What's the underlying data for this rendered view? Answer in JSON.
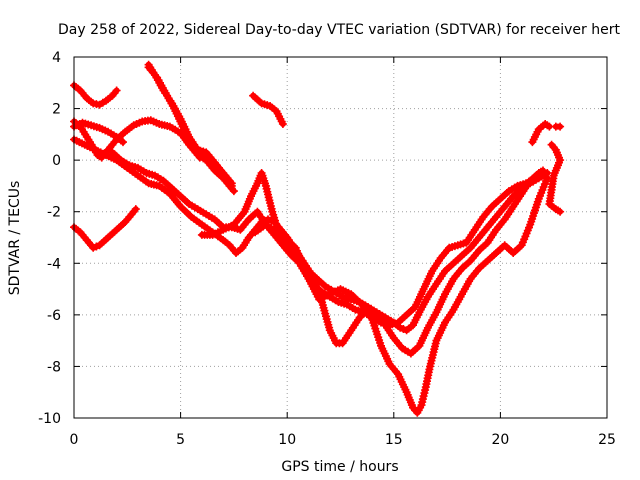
{
  "chart_data": {
    "type": "scatter",
    "title": "Day 258 of 2022, Sidereal Day-to-day VTEC variation (SDTVAR) for receiver hert",
    "xlabel": "GPS time / hours",
    "ylabel": "SDTVAR / TECUs",
    "xlim": [
      0,
      25
    ],
    "ylim": [
      -10,
      4
    ],
    "xticks": [
      0,
      5,
      10,
      15,
      20,
      25
    ],
    "yticks": [
      -10,
      -8,
      -6,
      -4,
      -2,
      0,
      2,
      4
    ],
    "grid": true,
    "marker": "plus",
    "color": "#ff0000",
    "series": [
      {
        "points": [
          [
            0.0,
            2.9
          ],
          [
            0.3,
            2.7
          ],
          [
            0.6,
            2.4
          ],
          [
            0.9,
            2.2
          ],
          [
            1.2,
            2.15
          ],
          [
            1.5,
            2.3
          ],
          [
            1.8,
            2.5
          ],
          [
            2.0,
            2.7
          ]
        ]
      },
      {
        "points": [
          [
            0.0,
            1.3
          ],
          [
            0.4,
            1.45
          ],
          [
            0.8,
            1.35
          ],
          [
            1.2,
            1.25
          ],
          [
            1.6,
            1.1
          ],
          [
            2.0,
            0.9
          ],
          [
            2.3,
            0.7
          ]
        ]
      },
      {
        "points": [
          [
            0.0,
            1.5
          ],
          [
            0.3,
            1.3
          ],
          [
            0.6,
            0.9
          ],
          [
            0.9,
            0.5
          ],
          [
            1.1,
            0.2
          ],
          [
            1.3,
            0.1
          ],
          [
            1.6,
            0.4
          ],
          [
            2.0,
            0.8
          ],
          [
            2.4,
            1.1
          ],
          [
            2.8,
            1.35
          ],
          [
            3.2,
            1.5
          ],
          [
            3.6,
            1.55
          ],
          [
            4.0,
            1.4
          ],
          [
            4.5,
            1.3
          ],
          [
            5.0,
            1.05
          ],
          [
            5.4,
            0.6
          ],
          [
            5.8,
            0.2
          ],
          [
            6.2,
            0.0
          ],
          [
            6.6,
            -0.4
          ],
          [
            7.0,
            -0.7
          ],
          [
            7.4,
            -1.0
          ]
        ]
      },
      {
        "points": [
          [
            0.0,
            0.8
          ],
          [
            0.5,
            0.6
          ],
          [
            1.0,
            0.4
          ],
          [
            1.5,
            0.2
          ],
          [
            2.0,
            0.0
          ],
          [
            2.5,
            -0.3
          ],
          [
            3.0,
            -0.6
          ],
          [
            3.5,
            -0.9
          ],
          [
            4.0,
            -1.0
          ],
          [
            4.5,
            -1.3
          ],
          [
            5.0,
            -1.8
          ],
          [
            5.5,
            -2.2
          ],
          [
            6.0,
            -2.5
          ],
          [
            6.5,
            -2.8
          ],
          [
            7.0,
            -3.1
          ],
          [
            7.3,
            -3.3
          ],
          [
            7.6,
            -3.6
          ],
          [
            7.9,
            -3.4
          ],
          [
            8.2,
            -3.0
          ],
          [
            8.5,
            -2.7
          ],
          [
            8.8,
            -2.4
          ],
          [
            9.1,
            -2.3
          ],
          [
            9.4,
            -2.4
          ],
          [
            9.7,
            -2.7
          ],
          [
            10.0,
            -3.0
          ],
          [
            10.4,
            -3.5
          ],
          [
            10.8,
            -4.0
          ],
          [
            11.2,
            -4.5
          ],
          [
            11.6,
            -5.4
          ],
          [
            12.0,
            -6.6
          ],
          [
            12.3,
            -7.1
          ],
          [
            12.6,
            -7.1
          ],
          [
            13.0,
            -6.6
          ],
          [
            13.4,
            -6.1
          ],
          [
            13.8,
            -5.8
          ],
          [
            14.2,
            -6.0
          ],
          [
            14.6,
            -6.4
          ],
          [
            15.0,
            -6.9
          ],
          [
            15.4,
            -7.3
          ],
          [
            15.8,
            -7.5
          ],
          [
            16.2,
            -7.2
          ],
          [
            16.6,
            -6.5
          ],
          [
            17.0,
            -5.9
          ],
          [
            17.4,
            -5.2
          ],
          [
            17.8,
            -4.6
          ],
          [
            18.2,
            -4.2
          ],
          [
            18.6,
            -3.9
          ],
          [
            19.0,
            -3.5
          ],
          [
            19.4,
            -3.2
          ],
          [
            19.8,
            -2.7
          ],
          [
            20.2,
            -2.3
          ],
          [
            20.6,
            -1.8
          ],
          [
            21.0,
            -1.3
          ],
          [
            21.4,
            -0.8
          ],
          [
            21.8,
            -0.5
          ],
          [
            22.0,
            -0.4
          ]
        ]
      },
      {
        "points": [
          [
            0.0,
            -2.6
          ],
          [
            0.3,
            -2.8
          ],
          [
            0.6,
            -3.1
          ],
          [
            0.9,
            -3.4
          ],
          [
            1.2,
            -3.3
          ],
          [
            1.6,
            -3.0
          ],
          [
            2.0,
            -2.7
          ],
          [
            2.4,
            -2.4
          ],
          [
            2.7,
            -2.1
          ],
          [
            2.9,
            -1.9
          ]
        ]
      },
      {
        "points": [
          [
            3.5,
            3.6
          ],
          [
            3.9,
            3.2
          ],
          [
            4.3,
            2.6
          ],
          [
            4.7,
            2.0
          ],
          [
            5.1,
            1.3
          ],
          [
            5.5,
            0.6
          ],
          [
            5.9,
            0.1
          ],
          [
            6.3,
            0.2
          ],
          [
            6.7,
            -0.2
          ],
          [
            7.1,
            -0.8
          ],
          [
            7.5,
            -1.2
          ]
        ]
      },
      {
        "points": [
          [
            3.5,
            3.7
          ],
          [
            3.8,
            3.3
          ],
          [
            4.2,
            2.7
          ],
          [
            4.6,
            2.2
          ],
          [
            5.0,
            1.6
          ],
          [
            5.4,
            0.9
          ],
          [
            5.8,
            0.4
          ],
          [
            6.2,
            0.3
          ],
          [
            6.6,
            -0.1
          ],
          [
            7.0,
            -0.5
          ],
          [
            7.4,
            -0.9
          ]
        ]
      },
      {
        "points": [
          [
            1.8,
            0.3
          ],
          [
            2.2,
            0.0
          ],
          [
            2.6,
            -0.2
          ],
          [
            3.0,
            -0.3
          ],
          [
            3.4,
            -0.5
          ],
          [
            3.8,
            -0.6
          ],
          [
            4.2,
            -0.8
          ],
          [
            4.6,
            -1.1
          ],
          [
            5.0,
            -1.4
          ],
          [
            5.4,
            -1.7
          ],
          [
            5.8,
            -1.9
          ],
          [
            6.2,
            -2.1
          ],
          [
            6.6,
            -2.3
          ],
          [
            7.0,
            -2.6
          ],
          [
            7.4,
            -2.6
          ],
          [
            7.8,
            -2.7
          ],
          [
            8.2,
            -2.3
          ],
          [
            8.6,
            -2.0
          ],
          [
            9.0,
            -2.5
          ],
          [
            9.4,
            -2.9
          ],
          [
            9.8,
            -3.3
          ],
          [
            10.2,
            -3.7
          ],
          [
            10.6,
            -4.0
          ],
          [
            11.0,
            -4.3
          ],
          [
            11.4,
            -4.6
          ],
          [
            11.8,
            -4.9
          ],
          [
            12.2,
            -5.1
          ],
          [
            12.6,
            -5.3
          ],
          [
            13.0,
            -5.4
          ],
          [
            13.4,
            -5.5
          ],
          [
            13.8,
            -5.7
          ],
          [
            14.2,
            -5.9
          ],
          [
            14.6,
            -6.1
          ],
          [
            15.0,
            -6.3
          ],
          [
            15.3,
            -6.5
          ],
          [
            15.6,
            -6.6
          ],
          [
            15.9,
            -6.4
          ],
          [
            16.2,
            -5.9
          ],
          [
            16.6,
            -5.3
          ],
          [
            17.0,
            -4.8
          ],
          [
            17.4,
            -4.3
          ],
          [
            17.8,
            -4.0
          ],
          [
            18.2,
            -3.7
          ],
          [
            18.6,
            -3.4
          ],
          [
            19.0,
            -3.0
          ],
          [
            19.4,
            -2.6
          ],
          [
            19.8,
            -2.2
          ],
          [
            20.2,
            -1.8
          ],
          [
            20.6,
            -1.4
          ],
          [
            21.0,
            -1.1
          ],
          [
            21.4,
            -0.9
          ],
          [
            21.8,
            -0.7
          ],
          [
            22.2,
            -0.5
          ]
        ]
      },
      {
        "points": [
          [
            6.0,
            -2.9
          ],
          [
            6.5,
            -2.9
          ],
          [
            7.0,
            -2.7
          ],
          [
            7.5,
            -2.5
          ],
          [
            8.0,
            -2.0
          ],
          [
            8.3,
            -1.4
          ],
          [
            8.6,
            -0.9
          ],
          [
            8.8,
            -0.5
          ],
          [
            9.0,
            -1.0
          ],
          [
            9.3,
            -2.0
          ],
          [
            9.6,
            -2.8
          ],
          [
            10.0,
            -3.1
          ],
          [
            10.4,
            -3.4
          ],
          [
            10.8,
            -4.2
          ],
          [
            11.2,
            -4.8
          ],
          [
            11.6,
            -5.1
          ],
          [
            12.0,
            -5.3
          ],
          [
            12.4,
            -5.5
          ],
          [
            12.8,
            -5.6
          ],
          [
            13.2,
            -5.8
          ],
          [
            13.6,
            -5.9
          ],
          [
            14.0,
            -6.1
          ],
          [
            14.4,
            -6.3
          ],
          [
            14.8,
            -6.4
          ],
          [
            15.2,
            -6.3
          ],
          [
            15.6,
            -6.0
          ],
          [
            16.0,
            -5.7
          ],
          [
            16.4,
            -5.0
          ],
          [
            16.8,
            -4.3
          ],
          [
            17.2,
            -3.8
          ],
          [
            17.6,
            -3.4
          ],
          [
            18.0,
            -3.3
          ],
          [
            18.4,
            -3.2
          ],
          [
            18.8,
            -2.7
          ],
          [
            19.2,
            -2.2
          ],
          [
            19.6,
            -1.8
          ],
          [
            20.0,
            -1.5
          ],
          [
            20.4,
            -1.2
          ],
          [
            20.8,
            -1.0
          ],
          [
            21.2,
            -0.9
          ],
          [
            21.6,
            -0.7
          ],
          [
            22.0,
            -0.6
          ]
        ]
      },
      {
        "points": [
          [
            8.5,
            -2.8
          ],
          [
            9.0,
            -2.5
          ],
          [
            9.5,
            -2.8
          ],
          [
            10.0,
            -3.3
          ],
          [
            10.5,
            -3.9
          ],
          [
            11.0,
            -4.6
          ],
          [
            11.5,
            -5.4
          ],
          [
            12.0,
            -5.2
          ],
          [
            12.5,
            -5.0
          ],
          [
            13.0,
            -5.2
          ],
          [
            13.5,
            -5.6
          ],
          [
            14.0,
            -6.2
          ],
          [
            14.4,
            -7.2
          ],
          [
            14.8,
            -7.9
          ],
          [
            15.2,
            -8.3
          ],
          [
            15.6,
            -9.0
          ],
          [
            15.9,
            -9.6
          ],
          [
            16.1,
            -9.8
          ],
          [
            16.3,
            -9.5
          ],
          [
            16.5,
            -8.8
          ],
          [
            16.7,
            -8.0
          ],
          [
            17.0,
            -7.0
          ],
          [
            17.4,
            -6.3
          ],
          [
            17.8,
            -5.8
          ],
          [
            18.2,
            -5.2
          ],
          [
            18.6,
            -4.6
          ],
          [
            19.0,
            -4.2
          ],
          [
            19.4,
            -3.9
          ],
          [
            19.8,
            -3.6
          ],
          [
            20.2,
            -3.3
          ],
          [
            20.6,
            -3.6
          ],
          [
            21.0,
            -3.3
          ],
          [
            21.4,
            -2.5
          ],
          [
            21.8,
            -1.5
          ],
          [
            22.2,
            -0.7
          ]
        ]
      },
      {
        "points": [
          [
            8.4,
            2.5
          ],
          [
            8.8,
            2.2
          ],
          [
            9.2,
            2.1
          ],
          [
            9.5,
            1.9
          ],
          [
            9.8,
            1.4
          ]
        ]
      },
      {
        "points": [
          [
            21.5,
            0.7
          ],
          [
            21.8,
            1.2
          ],
          [
            22.1,
            1.4
          ],
          [
            22.3,
            1.3
          ]
        ]
      },
      {
        "points": [
          [
            22.4,
            0.6
          ],
          [
            22.6,
            0.4
          ],
          [
            22.8,
            0.0
          ],
          [
            22.5,
            -0.6
          ],
          [
            22.3,
            -1.7
          ],
          [
            22.6,
            -1.9
          ],
          [
            22.8,
            -2.0
          ]
        ]
      },
      {
        "points": [
          [
            22.6,
            1.3
          ],
          [
            22.8,
            1.3
          ]
        ]
      }
    ]
  }
}
